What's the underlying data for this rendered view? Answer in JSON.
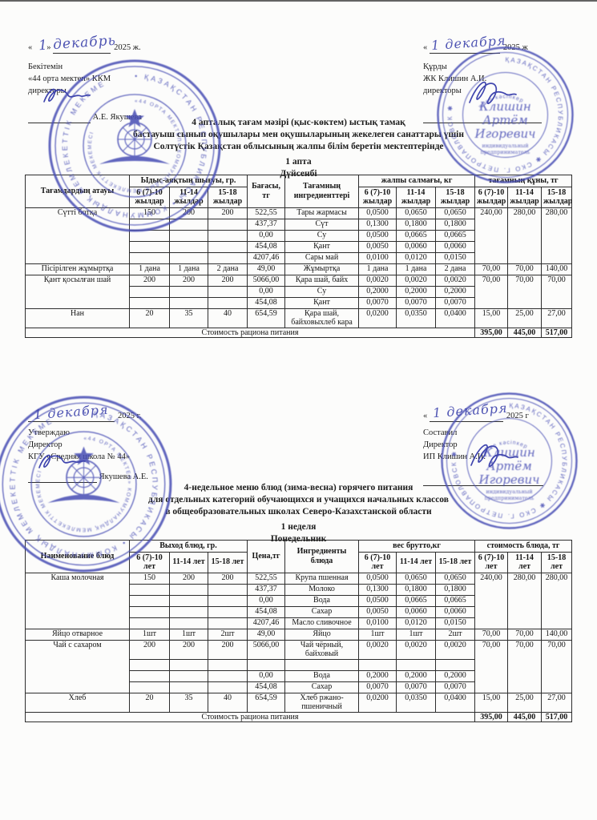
{
  "page": {
    "section1": {
      "approval_left": {
        "date_open": "«",
        "date_close": "»",
        "date_hw": "1 декабрь",
        "date_year": "2025 ж.",
        "line1": "Бекітемін",
        "line2": "«44 орта мектеп» ККМ",
        "line3": "директоры",
        "signer": "А.Е. Якушева"
      },
      "approval_right": {
        "date_open": "«",
        "date_hw": "1 декабря",
        "date_year": "2025 ж",
        "line1": "Құрды",
        "line2": "ЖК Клишин А.И.",
        "line3": "директоры"
      },
      "title_lines": [
        "4 апталық тағам мәзірі (қыс-көктем) ыстық тамақ",
        "бастауыш сынып оқушылары мен оқушыларының жекелеген санаттары үшін",
        "Солтүстік Қазақстан облысының жалпы білім беретін мектептерінде"
      ],
      "week": "1 апта",
      "day": "Дүйсенбі",
      "table": {
        "header": {
          "col_dish": "Тағамдардың атауы",
          "col_output": "Ыдыс-аяқтың шығуы, гр.",
          "col_price": "Бағасы, тг",
          "col_ingredients": "Тағамның ингредиенттері",
          "col_weight": "жалпы салмағы, кг",
          "col_cost": "тағамның құны, тг",
          "age_groups": [
            "6 (7)-10 жылдар",
            "11-14 жылдар",
            "15-18 жылдар"
          ]
        },
        "dishes": [
          {
            "name": "Сүтті ботқа",
            "portions": [
              "150",
              "200",
              "200"
            ],
            "rows": [
              {
                "price": "522,55",
                "ingredient": "Тары жармасы",
                "w": [
                  "0,0500",
                  "0,0650",
                  "0,0650"
                ]
              },
              {
                "price": "437,37",
                "ingredient": "Сүт",
                "w": [
                  "0,1300",
                  "0,1800",
                  "0,1800"
                ]
              },
              {
                "price": "0,00",
                "ingredient": "Су",
                "w": [
                  "0,0500",
                  "0,0665",
                  "0,0665"
                ]
              },
              {
                "price": "454,08",
                "ingredient": "Қант",
                "w": [
                  "0,0050",
                  "0,0060",
                  "0,0060"
                ]
              },
              {
                "price": "4207,46",
                "ingredient": "Сары май",
                "w": [
                  "0,0100",
                  "0,0120",
                  "0,0150"
                ]
              }
            ],
            "cost": [
              "240,00",
              "280,00",
              "280,00"
            ]
          },
          {
            "name": "Пісірілген жұмыртқа",
            "portions": [
              "1 дана",
              "1 дана",
              "2 дана"
            ],
            "rows": [
              {
                "price": "49,00",
                "ingredient": "Жұмыртқа",
                "w": [
                  "1 дана",
                  "1 дана",
                  "2 дана"
                ]
              }
            ],
            "cost": [
              "70,00",
              "70,00",
              "140,00"
            ]
          },
          {
            "name": "Қант қосылған шай",
            "portions": [
              "200",
              "200",
              "200"
            ],
            "rows": [
              {
                "price": "5066,00",
                "ingredient": "Қара шай, байх",
                "w": [
                  "0,0020",
                  "0,0020",
                  "0,0020"
                ]
              },
              {
                "price": "0,00",
                "ingredient": "Су",
                "w": [
                  "0,2000",
                  "0,2000",
                  "0,2000"
                ]
              },
              {
                "price": "454,08",
                "ingredient": "Қант",
                "w": [
                  "0,0070",
                  "0,0070",
                  "0,0070"
                ]
              }
            ],
            "cost": [
              "70,00",
              "70,00",
              "70,00"
            ]
          },
          {
            "name": "Нан",
            "portions": [
              "20",
              "35",
              "40"
            ],
            "rows": [
              {
                "price": "654,59",
                "ingredient": "Қара шай, байховыхлеб кара",
                "w": [
                  "0,0200",
                  "0,0350",
                  "0,0400"
                ]
              }
            ],
            "cost": [
              "15,00",
              "25,00",
              "27,00"
            ]
          }
        ],
        "footer": {
          "label": "Стоимость рациона питания",
          "totals": [
            "395,00",
            "445,00",
            "517,00"
          ]
        }
      }
    },
    "section2": {
      "approval_left": {
        "date_hw": "1 декабря",
        "date_year": "2025 г.",
        "line1": "Утверждаю",
        "line2": "Директор",
        "line3": "КГУ «Средняя школа № 44»",
        "signer": "Якушева А.Е."
      },
      "approval_right": {
        "date_open": "«",
        "date_hw": "1 декабря",
        "date_year": "2025 г",
        "line1": "Составил",
        "line2": "Директор",
        "line3": "ИП Клишин А.И."
      },
      "title_lines": [
        "4-недельное меню блюд (зима-весна) горячего питания",
        "для отдельных категорий обучающихся и учащихся начальных классов",
        "в общеобразовательных школах Северо-Казахстанской области"
      ],
      "week": "1 неделя",
      "day": "Понедельник",
      "table": {
        "header": {
          "col_dish": "Наименование блюд",
          "col_output": "Выход блюд, гр.",
          "col_price": "Цена,тг",
          "col_ingredients": "Ингредиенты блюда",
          "col_weight": "вес брутто,кг",
          "col_cost": "стоимость блюда, тг",
          "age_groups": [
            "6 (7)-10 лет",
            "11-14 лет",
            "15-18 лет"
          ]
        },
        "dishes": [
          {
            "name": "Каша молочная",
            "portions": [
              "150",
              "200",
              "200"
            ],
            "rows": [
              {
                "price": "522,55",
                "ingredient": "Крупа пшенная",
                "w": [
                  "0,0500",
                  "0,0650",
                  "0,0650"
                ]
              },
              {
                "price": "437,37",
                "ingredient": "Молоко",
                "w": [
                  "0,1300",
                  "0,1800",
                  "0,1800"
                ]
              },
              {
                "price": "0,00",
                "ingredient": "Вода",
                "w": [
                  "0,0500",
                  "0,0665",
                  "0,0665"
                ]
              },
              {
                "price": "454,08",
                "ingredient": "Сахар",
                "w": [
                  "0,0050",
                  "0,0060",
                  "0,0060"
                ]
              },
              {
                "price": "4207,46",
                "ingredient": "Масло сливочное",
                "w": [
                  "0,0100",
                  "0,0120",
                  "0,0150"
                ]
              }
            ],
            "cost": [
              "240,00",
              "280,00",
              "280,00"
            ]
          },
          {
            "name": "Яйцо отварное",
            "portions": [
              "1шт",
              "1шт",
              "2шт"
            ],
            "rows": [
              {
                "price": "49,00",
                "ingredient": "Яйцо",
                "w": [
                  "1шт",
                  "1шт",
                  "2шт"
                ]
              }
            ],
            "cost": [
              "70,00",
              "70,00",
              "140,00"
            ]
          },
          {
            "name": "Чай с сахаром",
            "portions": [
              "200",
              "200",
              "200"
            ],
            "rows": [
              {
                "price": "5066,00",
                "ingredient": "Чай чёрный, байховый",
                "w": [
                  "0,0020",
                  "0,0020",
                  "0,0020"
                ]
              },
              {
                "price": "",
                "ingredient": "",
                "w": [
                  "",
                  "",
                  ""
                ],
                "gap": true
              },
              {
                "price": "0,00",
                "ingredient": "Вода",
                "w": [
                  "0,2000",
                  "0,2000",
                  "0,2000"
                ]
              },
              {
                "price": "454,08",
                "ingredient": "Сахар",
                "w": [
                  "0,0070",
                  "0,0070",
                  "0,0070"
                ]
              }
            ],
            "cost": [
              "70,00",
              "70,00",
              "70,00"
            ]
          },
          {
            "name": "Хлеб",
            "portions": [
              "20",
              "35",
              "40"
            ],
            "rows": [
              {
                "price": "654,59",
                "ingredient": "Хлеб ржано-пшеничный",
                "w": [
                  "0,0200",
                  "0,0350",
                  "0,0400"
                ]
              }
            ],
            "cost": [
              "15,00",
              "25,00",
              "27,00"
            ]
          }
        ],
        "footer": {
          "label": "Стоимость рациона питания",
          "totals": [
            "395,00",
            "445,00",
            "517,00"
          ]
        }
      }
    },
    "stamps": {
      "school": {
        "ring_outer": "• ҚАЗАҚСТАН РЕСПУБЛИКАСЫ • КОММУНАЛДЫҚ МЕМЛЕКЕТТІК МЕКЕМЕ ",
        "ring_inner": "«44 ОРТА МЕКТЕП» КОММУНАЛДЫҚ МЕМЛЕКЕТТІК МЕКЕМЕСІ "
      },
      "entrepreneur": {
        "ring": "ҚАЗАҚСТАН РЕСПУБЛИКАСЫ ✱ СКО Г. ПЕТРОПАВЛОВСК ✱ ",
        "arc_inner": "жеке кәсіпкер",
        "name_line1": "Клишин",
        "name_line2": "Артём",
        "name_line3": "Игоревич",
        "subtitle1": "индивидуальный",
        "subtitle2": "предприниматель"
      },
      "ink_color": "#474db4"
    }
  }
}
